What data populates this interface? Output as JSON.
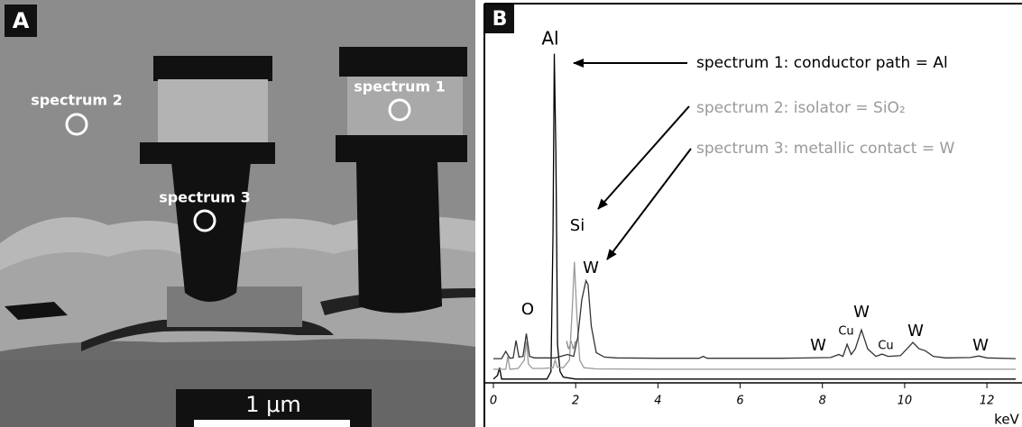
{
  "panel_a": {
    "label": "A",
    "markers": [
      "spectrum 2",
      "spectrum 1",
      "spectrum 3"
    ],
    "scale_bar": "1 μm"
  },
  "chart_data": {
    "type": "line",
    "panel_label": "B",
    "xlabel": "keV",
    "xlim": [
      0,
      12.7
    ],
    "xticks": [
      0,
      2,
      4,
      6,
      8,
      10,
      12
    ],
    "ylim": [
      0,
      100
    ],
    "grid": false,
    "series": [
      {
        "name": "spectrum 1: conductor path = Al",
        "color": "#000000",
        "x": [
          0,
          0.1,
          0.15,
          0.2,
          0.3,
          0.5,
          1.0,
          1.3,
          1.4,
          1.45,
          1.48,
          1.52,
          1.56,
          1.62,
          1.7,
          2,
          3,
          4,
          6,
          8,
          10,
          12,
          12.7
        ],
        "values": [
          1,
          2,
          4,
          1,
          1,
          1,
          1,
          1,
          3,
          40,
          87,
          60,
          10,
          3,
          1.5,
          1,
          1,
          1,
          1,
          1,
          1,
          1,
          1
        ]
      },
      {
        "name": "spectrum 2: isolator = SiO₂",
        "color": "#9a9a9a",
        "x": [
          0,
          0.3,
          0.35,
          0.4,
          0.6,
          0.75,
          0.8,
          0.85,
          0.95,
          1.2,
          1.45,
          1.5,
          1.55,
          1.7,
          1.85,
          1.92,
          1.97,
          2.03,
          2.1,
          2.2,
          2.5,
          4,
          8,
          12.7
        ],
        "values": [
          3.6,
          3.6,
          7,
          3.6,
          3.8,
          6,
          11,
          5,
          3.8,
          3.8,
          4,
          6,
          4.2,
          4,
          6,
          20,
          32,
          18,
          6,
          4,
          3.7,
          3.6,
          3.6,
          3.6
        ]
      },
      {
        "name": "spectrum 3: metallic contact = W",
        "color": "#333333",
        "x": [
          0,
          0.2,
          0.3,
          0.4,
          0.48,
          0.55,
          0.62,
          0.72,
          0.8,
          0.88,
          1.0,
          1.5,
          1.8,
          1.95,
          2.05,
          2.15,
          2.25,
          2.3,
          2.38,
          2.5,
          2.7,
          3,
          4,
          5,
          5.1,
          5.2,
          6,
          7,
          8.2,
          8.4,
          8.5,
          8.6,
          8.7,
          8.8,
          8.95,
          9.1,
          9.3,
          9.45,
          9.6,
          9.9,
          10.1,
          10.2,
          10.35,
          10.5,
          10.7,
          11,
          11.6,
          11.8,
          12,
          12.7
        ],
        "values": [
          6.4,
          6.4,
          8.3,
          6.5,
          6.6,
          11.2,
          6.8,
          7,
          13,
          7,
          6.6,
          6.6,
          7.5,
          7,
          12,
          22,
          27,
          26,
          15,
          8,
          6.8,
          6.6,
          6.5,
          6.5,
          7,
          6.5,
          6.5,
          6.5,
          6.7,
          7.5,
          7,
          10.2,
          7.5,
          9,
          14,
          9,
          7,
          7.6,
          7,
          7.2,
          9.5,
          10.7,
          9,
          8.5,
          7,
          6.6,
          6.7,
          7.1,
          6.6,
          6.4
        ]
      }
    ],
    "peak_labels": [
      "Al",
      "Si",
      "W",
      "O",
      "W",
      "W",
      "Cu",
      "W",
      "Cu",
      "W",
      "W"
    ]
  }
}
